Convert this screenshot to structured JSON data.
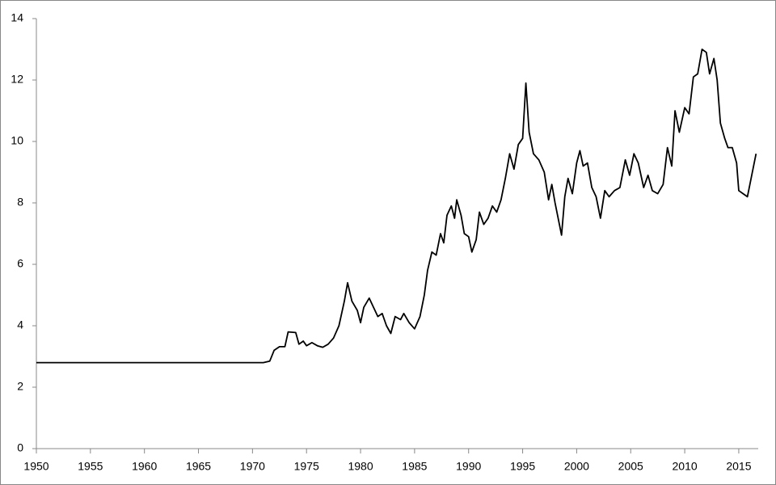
{
  "chart_data": {
    "type": "line",
    "x": [
      1950,
      1971.0,
      1971.6,
      1972.0,
      1972.5,
      1973.0,
      1973.3,
      1974.0,
      1974.3,
      1974.7,
      1975.0,
      1975.5,
      1976.0,
      1976.5,
      1977.0,
      1977.5,
      1978.0,
      1978.5,
      1978.8,
      1979.2,
      1979.7,
      1980.0,
      1980.3,
      1980.8,
      1981.2,
      1981.6,
      1982.0,
      1982.4,
      1982.8,
      1983.2,
      1983.7,
      1984.0,
      1984.5,
      1985.0,
      1985.5,
      1985.9,
      1986.2,
      1986.6,
      1987.0,
      1987.4,
      1987.7,
      1988.0,
      1988.4,
      1988.7,
      1988.9,
      1989.3,
      1989.6,
      1990.0,
      1990.3,
      1990.7,
      1991.0,
      1991.4,
      1991.8,
      1992.2,
      1992.6,
      1993.0,
      1993.4,
      1993.8,
      1994.2,
      1994.6,
      1995.0,
      1995.3,
      1995.6,
      1996.0,
      1996.5,
      1997.0,
      1997.4,
      1997.7,
      1998.0,
      1998.4,
      1998.6,
      1998.9,
      1999.2,
      1999.6,
      2000.0,
      2000.3,
      2000.6,
      2001.0,
      2001.4,
      2001.8,
      2002.2,
      2002.6,
      2003.0,
      2003.5,
      2004.0,
      2004.5,
      2004.9,
      2005.3,
      2005.7,
      2006.2,
      2006.6,
      2007.0,
      2007.5,
      2008.0,
      2008.4,
      2008.8,
      2009.1,
      2009.5,
      2010.0,
      2010.4,
      2010.8,
      2011.2,
      2011.6,
      2012.0,
      2012.3,
      2012.7,
      2013.0,
      2013.3,
      2013.7,
      2014.0,
      2014.4,
      2014.8,
      2015.0,
      2015.4,
      2015.8,
      2016.2,
      2016.6
    ],
    "series": [
      {
        "color": "#000000",
        "values": [
          2.8,
          2.8,
          2.85,
          3.2,
          3.32,
          3.32,
          3.8,
          3.78,
          3.4,
          3.5,
          3.35,
          3.45,
          3.35,
          3.3,
          3.4,
          3.6,
          4.0,
          4.8,
          5.4,
          4.8,
          4.5,
          4.1,
          4.6,
          4.9,
          4.6,
          4.3,
          4.4,
          4.0,
          3.75,
          4.3,
          4.2,
          4.4,
          4.1,
          3.9,
          4.3,
          5.0,
          5.8,
          6.4,
          6.3,
          7.0,
          6.7,
          7.6,
          7.9,
          7.5,
          8.1,
          7.6,
          7.0,
          6.9,
          6.4,
          6.8,
          7.7,
          7.3,
          7.5,
          7.9,
          7.7,
          8.1,
          8.8,
          9.6,
          9.1,
          9.9,
          10.1,
          11.9,
          10.3,
          9.6,
          9.4,
          9.0,
          8.1,
          8.6,
          8.0,
          7.3,
          6.95,
          8.2,
          8.8,
          8.3,
          9.3,
          9.7,
          9.2,
          9.3,
          8.5,
          8.2,
          7.5,
          8.4,
          8.2,
          8.4,
          8.5,
          9.4,
          8.9,
          9.6,
          9.3,
          8.5,
          8.9,
          8.4,
          8.3,
          8.6,
          9.8,
          9.2,
          11.0,
          10.3,
          11.1,
          10.9,
          12.1,
          12.2,
          13.0,
          12.9,
          12.2,
          12.7,
          12.0,
          10.6,
          10.1,
          9.8,
          9.8,
          9.3,
          8.4,
          8.3,
          8.2,
          8.9,
          9.6
        ]
      }
    ],
    "xlim": [
      1950,
      2016.8
    ],
    "xticks": [
      1950,
      1955,
      1960,
      1965,
      1970,
      1975,
      1980,
      1985,
      1990,
      1995,
      2000,
      2005,
      2010,
      2015
    ],
    "ylim": [
      0,
      14
    ],
    "yticks": [
      0,
      2,
      4,
      6,
      8,
      10,
      12,
      14
    ],
    "grid": false
  }
}
